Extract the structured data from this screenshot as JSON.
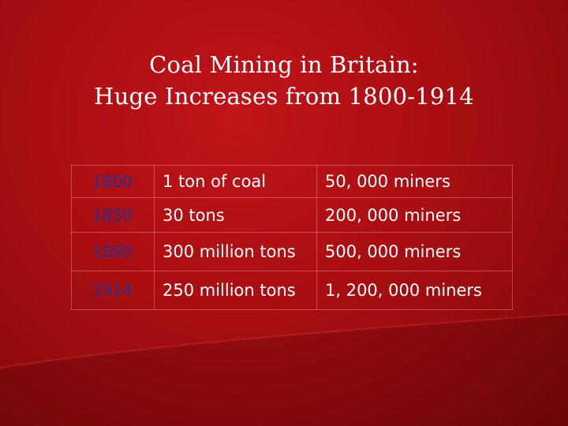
{
  "slide": {
    "title_line1": "Coal Mining in Britain:",
    "title_line2": "Huge Increases from 1800-1914",
    "background_color": "#a80e12",
    "year_color": "#2a2f8e"
  },
  "table": {
    "rows": [
      {
        "year": "1800",
        "output": "1 ton of coal",
        "miners": "50, 000 miners"
      },
      {
        "year": "1850",
        "output": "30 tons",
        "miners": "200, 000 miners"
      },
      {
        "year": "1880",
        "output": "300 million tons",
        "miners": "500, 000 miners"
      },
      {
        "year": "1914",
        "output": "250 million tons",
        "miners": "1, 200, 000 miners"
      }
    ]
  }
}
